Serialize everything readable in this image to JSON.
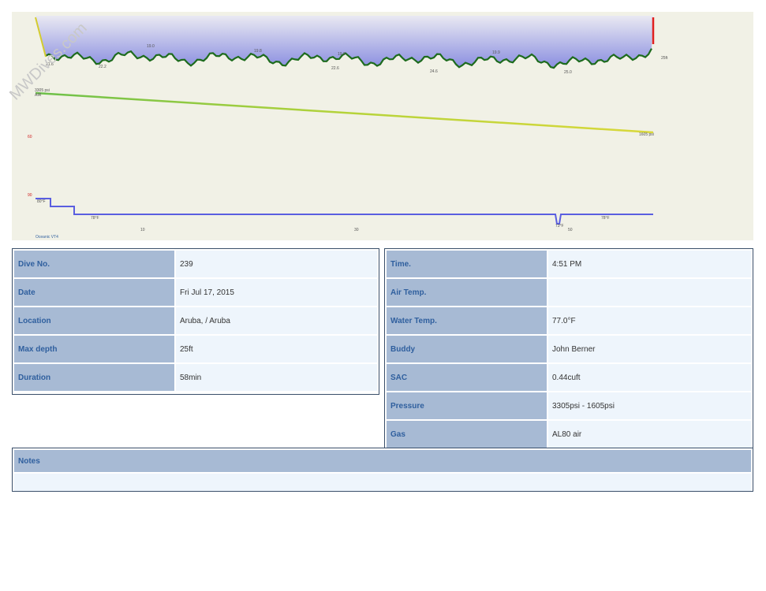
{
  "watermark": "MWDives.com",
  "profile": {
    "depth_labels": [
      "21.6",
      "22.2",
      "22.6",
      "24.6",
      "25.0"
    ],
    "peak_labels": [
      "19.0",
      "19.8",
      "19.9",
      "19.9"
    ],
    "max_depth_label": "25ft",
    "pressure_start": "3305 psi",
    "gas": "AIR",
    "pressure_end": "1605 psi",
    "axis_labels": [
      "60",
      "90"
    ],
    "temp_labels": [
      "80°F",
      "78°F",
      "73°F",
      "78°F"
    ],
    "time_labels": [
      "10",
      "30",
      "50"
    ],
    "computer": "Oceanic VT4"
  },
  "left_table": {
    "rows": [
      [
        "Dive No.",
        "239"
      ],
      [
        "Date",
        "Fri Jul 17, 2015"
      ],
      [
        "Location",
        "Aruba, / Aruba"
      ],
      [
        "Max depth",
        "25ft"
      ],
      [
        "Duration",
        "58min"
      ]
    ]
  },
  "right_table": {
    "rows": [
      [
        "Time.",
        "4:51 PM"
      ],
      [
        "Air Temp."
      ],
      [
        "Water Temp.",
        "77.0°F"
      ],
      [
        "Buddy",
        "John Berner"
      ],
      [
        "SAC",
        "0.44cuft"
      ],
      [
        "Pressure",
        "3305psi - 1605psi"
      ],
      [
        "Gas",
        "AL80 air"
      ]
    ]
  },
  "notes": {
    "title": "Notes"
  }
}
